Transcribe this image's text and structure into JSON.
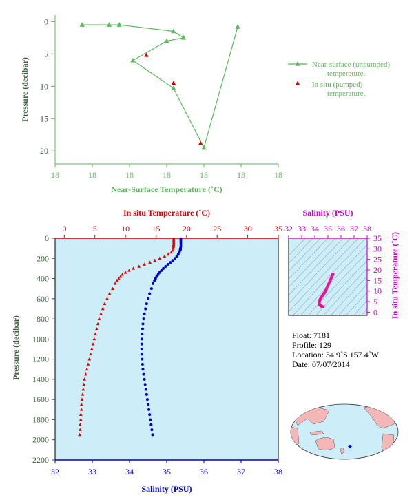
{
  "chart_data": [
    {
      "id": "near_surface",
      "type": "line",
      "xlabel": "Near-Surface Temperature (˚C)",
      "ylabel": "Pressure (decibar)",
      "xticks": [
        "18",
        "18",
        "18",
        "18",
        "18",
        "18",
        "18"
      ],
      "yticks": [
        "0",
        "5",
        "10",
        "15",
        "20"
      ],
      "xlim": [
        17.64,
        18.3
      ],
      "ylim": [
        22,
        -1
      ],
      "series": [
        {
          "name": "Near-surface (unpumped) temperature.",
          "marker": "triangle",
          "color": "#5cb85c",
          "x": [
            17.72,
            17.8,
            17.83,
            17.99,
            18.02,
            17.97,
            17.87,
            17.99,
            18.08,
            18.18
          ],
          "y": [
            0.5,
            0.5,
            0.5,
            1.5,
            2.5,
            3.0,
            6.0,
            10.3,
            19.5,
            0.8
          ]
        },
        {
          "name": "In situ (pumped) temperature.",
          "marker": "triangle",
          "color": "#dd0000",
          "x": [
            17.91,
            17.99,
            18.07
          ],
          "y": [
            5.2,
            9.5,
            18.8
          ]
        }
      ]
    },
    {
      "id": "profile",
      "type": "scatter",
      "title": "In situ Temperature (˚C)",
      "xlabel": "Salinity (PSU)",
      "ylabel": "Pressure (decibar)",
      "temp_ticks": [
        "0",
        "5",
        "10",
        "15",
        "20",
        "25",
        "30",
        "35"
      ],
      "sal_ticks": [
        "32",
        "33",
        "34",
        "35",
        "36",
        "37",
        "38"
      ],
      "pressure_ticks": [
        "0",
        "200",
        "400",
        "600",
        "800",
        "1000",
        "1200",
        "1400",
        "1600",
        "1800",
        "2000",
        "2200"
      ],
      "temp_lim": [
        -1.5,
        35
      ],
      "sal_lim": [
        32,
        38
      ],
      "pressure_lim": [
        0,
        2200
      ],
      "pressure": [
        5,
        20,
        40,
        60,
        80,
        100,
        120,
        140,
        160,
        180,
        200,
        220,
        240,
        260,
        280,
        300,
        320,
        340,
        360,
        380,
        400,
        420,
        450,
        500,
        550,
        600,
        650,
        700,
        750,
        800,
        850,
        900,
        950,
        1000,
        1050,
        1100,
        1150,
        1200,
        1250,
        1300,
        1350,
        1400,
        1450,
        1500,
        1550,
        1600,
        1650,
        1700,
        1750,
        1800,
        1850,
        1900,
        1950
      ],
      "temperature": [
        17.9,
        17.9,
        17.9,
        17.9,
        17.8,
        17.8,
        17.7,
        17.5,
        17.0,
        16.4,
        15.6,
        14.8,
        14.0,
        13.1,
        12.2,
        11.3,
        10.6,
        10.0,
        9.5,
        9.2,
        8.9,
        8.6,
        8.3,
        7.9,
        7.4,
        7.0,
        6.6,
        6.3,
        6.0,
        5.7,
        5.5,
        5.3,
        5.1,
        4.9,
        4.7,
        4.5,
        4.3,
        4.1,
        3.9,
        3.7,
        3.5,
        3.3,
        3.2,
        3.1,
        3.0,
        2.9,
        2.8,
        2.8,
        2.7,
        2.7,
        2.6,
        2.6,
        2.5
      ],
      "salinity": [
        35.38,
        35.38,
        35.38,
        35.38,
        35.38,
        35.37,
        35.36,
        35.34,
        35.31,
        35.27,
        35.22,
        35.16,
        35.1,
        35.03,
        34.97,
        34.91,
        34.86,
        34.81,
        34.77,
        34.73,
        34.7,
        34.67,
        34.63,
        34.59,
        34.54,
        34.5,
        34.46,
        34.43,
        34.4,
        34.38,
        34.36,
        34.35,
        34.34,
        34.33,
        34.33,
        34.33,
        34.33,
        34.34,
        34.35,
        34.36,
        34.38,
        34.4,
        34.42,
        34.44,
        34.46,
        34.48,
        34.5,
        34.52,
        34.54,
        34.56,
        34.58,
        34.6,
        34.62
      ],
      "temp_color": "#dd0000",
      "sal_color": "#0000cc",
      "background": "#cdeef8"
    },
    {
      "id": "ts_diagram",
      "type": "scatter",
      "title": "Salinity (PSU)",
      "ylabel": "In situ Temperature (˚C)",
      "xticks": [
        "32",
        "33",
        "34",
        "35",
        "36",
        "37",
        "38"
      ],
      "yticks": [
        "0",
        "5",
        "10",
        "15",
        "20",
        "25",
        "30",
        "35"
      ],
      "xlim": [
        32,
        38
      ],
      "ylim": [
        -1.5,
        35
      ],
      "color": "#ee1199"
    }
  ],
  "float_info": {
    "float": "Float:  7181",
    "profile": "Profile:  129",
    "location": "Location:  34.9˚S  157.4˚W",
    "date": "Date:  07/07/2014"
  },
  "colors": {
    "green": "#5cb85c",
    "red": "#dd0000",
    "blue": "#0000cc",
    "magenta": "#cc00cc",
    "dark_green": "#3b5e3b",
    "land": "#f4b7b7",
    "ocean": "#cdeef8"
  }
}
